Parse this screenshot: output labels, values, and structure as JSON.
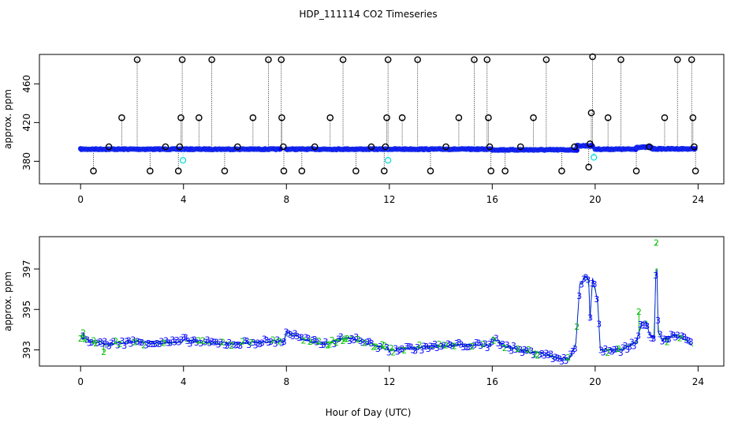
{
  "title": "HDP_111114  CO2 Timeseries",
  "xlabel": "Hour of Day (UTC)",
  "colors": {
    "open_circle": "#000000",
    "series_fill": "#0000ff",
    "series_edge": "#1f3ae0",
    "aux_cyan": "#00d8d8",
    "code_green": "#00c000",
    "code_blue": "#0000ff"
  },
  "chart_data": [
    {
      "type": "scatter",
      "panel": "top",
      "ylabel": "approx. ppm",
      "xlim": [
        -1.6,
        25.0
      ],
      "ylim": [
        356.7,
        490.4
      ],
      "xticks": [
        0,
        4,
        8,
        12,
        16,
        20,
        24
      ],
      "yticks": [
        380,
        420,
        460
      ],
      "baseline_segments": [
        {
          "x0": 0.0,
          "x1": 7.8,
          "y": 392.5
        },
        {
          "x0": 8.0,
          "x1": 16.0,
          "y": 392.5
        },
        {
          "x0": 16.0,
          "x1": 19.3,
          "y": 391.8
        },
        {
          "x0": 19.3,
          "x1": 19.9,
          "y": 396.0
        },
        {
          "x0": 20.0,
          "x1": 21.6,
          "y": 392.5
        },
        {
          "x0": 21.6,
          "x1": 22.2,
          "y": 394.5
        },
        {
          "x0": 22.2,
          "x1": 23.9,
          "y": 392.8
        }
      ],
      "outliers": [
        {
          "x": 0.5,
          "y": 370
        },
        {
          "x": 1.1,
          "y": 395
        },
        {
          "x": 1.6,
          "y": 425
        },
        {
          "x": 2.2,
          "y": 485
        },
        {
          "x": 2.7,
          "y": 370
        },
        {
          "x": 3.3,
          "y": 395
        },
        {
          "x": 3.8,
          "y": 370
        },
        {
          "x": 3.85,
          "y": 395
        },
        {
          "x": 3.9,
          "y": 425
        },
        {
          "x": 3.95,
          "y": 485
        },
        {
          "x": 4.6,
          "y": 425
        },
        {
          "x": 5.1,
          "y": 485
        },
        {
          "x": 5.6,
          "y": 370
        },
        {
          "x": 6.1,
          "y": 395
        },
        {
          "x": 6.7,
          "y": 425
        },
        {
          "x": 7.3,
          "y": 485
        },
        {
          "x": 7.8,
          "y": 485
        },
        {
          "x": 7.82,
          "y": 425
        },
        {
          "x": 7.88,
          "y": 395
        },
        {
          "x": 7.9,
          "y": 370
        },
        {
          "x": 8.6,
          "y": 370
        },
        {
          "x": 9.1,
          "y": 395
        },
        {
          "x": 9.7,
          "y": 425
        },
        {
          "x": 10.2,
          "y": 485
        },
        {
          "x": 10.7,
          "y": 370
        },
        {
          "x": 11.3,
          "y": 395
        },
        {
          "x": 11.8,
          "y": 370
        },
        {
          "x": 11.85,
          "y": 395
        },
        {
          "x": 11.9,
          "y": 425
        },
        {
          "x": 11.95,
          "y": 485
        },
        {
          "x": 12.5,
          "y": 425
        },
        {
          "x": 13.1,
          "y": 485
        },
        {
          "x": 13.6,
          "y": 370
        },
        {
          "x": 14.2,
          "y": 395
        },
        {
          "x": 14.7,
          "y": 425
        },
        {
          "x": 15.3,
          "y": 485
        },
        {
          "x": 15.8,
          "y": 485
        },
        {
          "x": 15.85,
          "y": 425
        },
        {
          "x": 15.9,
          "y": 395
        },
        {
          "x": 15.95,
          "y": 370
        },
        {
          "x": 16.5,
          "y": 370
        },
        {
          "x": 17.1,
          "y": 395
        },
        {
          "x": 17.6,
          "y": 425
        },
        {
          "x": 18.1,
          "y": 485
        },
        {
          "x": 18.7,
          "y": 370
        },
        {
          "x": 19.2,
          "y": 395
        },
        {
          "x": 19.75,
          "y": 374
        },
        {
          "x": 19.8,
          "y": 398
        },
        {
          "x": 19.85,
          "y": 430
        },
        {
          "x": 19.9,
          "y": 488
        },
        {
          "x": 20.5,
          "y": 425
        },
        {
          "x": 21.0,
          "y": 485
        },
        {
          "x": 21.6,
          "y": 370
        },
        {
          "x": 22.1,
          "y": 395
        },
        {
          "x": 22.7,
          "y": 425
        },
        {
          "x": 23.2,
          "y": 485
        },
        {
          "x": 23.75,
          "y": 485
        },
        {
          "x": 23.8,
          "y": 425
        },
        {
          "x": 23.85,
          "y": 395
        },
        {
          "x": 23.9,
          "y": 370
        }
      ],
      "cyan_points": [
        {
          "x": 3.98,
          "y": 381
        },
        {
          "x": 11.95,
          "y": 381
        },
        {
          "x": 19.95,
          "y": 384
        }
      ]
    },
    {
      "type": "line",
      "panel": "bottom",
      "ylabel": "approx. ppm",
      "xlim": [
        -1.6,
        25.0
      ],
      "ylim": [
        392.2,
        398.6
      ],
      "xticks": [
        0,
        4,
        8,
        12,
        16,
        20,
        24
      ],
      "yticks": [
        393,
        395,
        397
      ],
      "point_labels": [
        "2",
        "3"
      ],
      "series_knots": [
        [
          0.0,
          393.6
        ],
        [
          0.5,
          393.4
        ],
        [
          1.0,
          393.3
        ],
        [
          2.0,
          393.4
        ],
        [
          3.0,
          393.35
        ],
        [
          3.9,
          393.4
        ],
        [
          4.0,
          393.5
        ],
        [
          5.0,
          393.35
        ],
        [
          6.0,
          393.3
        ],
        [
          7.0,
          393.4
        ],
        [
          7.9,
          393.45
        ],
        [
          8.0,
          393.9
        ],
        [
          8.5,
          393.6
        ],
        [
          9.0,
          393.4
        ],
        [
          9.5,
          393.3
        ],
        [
          10.0,
          393.5
        ],
        [
          10.5,
          393.6
        ],
        [
          11.0,
          393.4
        ],
        [
          11.8,
          393.1
        ],
        [
          12.0,
          393.0
        ],
        [
          13.0,
          393.1
        ],
        [
          14.0,
          393.2
        ],
        [
          15.0,
          393.25
        ],
        [
          15.9,
          393.2
        ],
        [
          16.0,
          393.6
        ],
        [
          16.5,
          393.2
        ],
        [
          17.0,
          393.0
        ],
        [
          17.5,
          392.9
        ],
        [
          18.0,
          392.8
        ],
        [
          18.5,
          392.6
        ],
        [
          19.0,
          392.55
        ],
        [
          19.25,
          393.3
        ],
        [
          19.4,
          396.2
        ],
        [
          19.6,
          396.6
        ],
        [
          19.75,
          396.5
        ],
        [
          19.8,
          394.5
        ],
        [
          19.9,
          396.5
        ],
        [
          20.0,
          396.0
        ],
        [
          20.1,
          395.3
        ],
        [
          20.2,
          393.0
        ],
        [
          20.5,
          393.0
        ],
        [
          21.0,
          393.0
        ],
        [
          21.3,
          393.2
        ],
        [
          21.6,
          393.4
        ],
        [
          21.8,
          394.3
        ],
        [
          22.0,
          394.4
        ],
        [
          22.1,
          393.8
        ],
        [
          22.3,
          393.6
        ],
        [
          22.38,
          398.2
        ],
        [
          22.45,
          393.8
        ],
        [
          22.6,
          393.5
        ],
        [
          23.0,
          393.7
        ],
        [
          23.4,
          393.6
        ],
        [
          23.8,
          393.2
        ]
      ],
      "green_spikes": [
        {
          "x": 0.1,
          "y": 393.85
        },
        {
          "x": 0.9,
          "y": 392.9
        },
        {
          "x": 21.7,
          "y": 394.9
        },
        {
          "x": 22.38,
          "y": 398.3
        },
        {
          "x": 22.8,
          "y": 393.4
        }
      ]
    }
  ]
}
